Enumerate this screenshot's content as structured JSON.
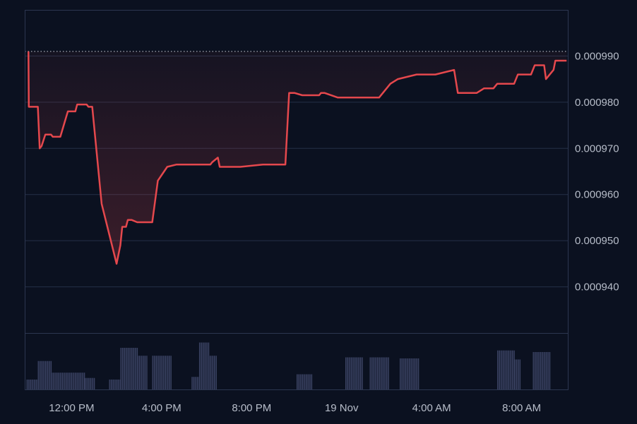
{
  "chart_data": {
    "type": "line",
    "title": "",
    "xlabel": "",
    "ylabel": "",
    "grid": true,
    "ylim": [
      0.00093,
      0.001
    ],
    "reference_line": 0.000991,
    "y_ticks": [
      "0.000940",
      "0.000950",
      "0.000960",
      "0.000970",
      "0.000980",
      "0.000990"
    ],
    "x_ticks": [
      "12:00 PM",
      "4:00 PM",
      "8:00 PM",
      "19 Nov",
      "4:00 AM",
      "8:00 AM"
    ],
    "colors": {
      "line": "#e5484d",
      "volume": "#3b4363",
      "grid": "#253047",
      "background": "#0b1120"
    },
    "series": [
      {
        "x": [
          "2024-11-18 10:05",
          "2024-11-18 10:06",
          "2024-11-18 10:30",
          "2024-11-18 10:35",
          "2024-11-18 10:40",
          "2024-11-18 10:50",
          "2024-11-18 11:05",
          "2024-11-18 11:10",
          "2024-11-18 11:30",
          "2024-11-18 11:50",
          "2024-11-18 12:10",
          "2024-11-18 12:15",
          "2024-11-18 12:40",
          "2024-11-18 12:45",
          "2024-11-18 12:55",
          "2024-11-18 13:20",
          "2024-11-18 14:00",
          "2024-11-18 14:10",
          "2024-11-18 14:15",
          "2024-11-18 14:25",
          "2024-11-18 14:30",
          "2024-11-18 14:35",
          "2024-11-18 14:40",
          "2024-11-18 14:55",
          "2024-11-18 15:20",
          "2024-11-18 15:35",
          "2024-11-18 15:50",
          "2024-11-18 16:15",
          "2024-11-18 16:40",
          "2024-11-18 17:25",
          "2024-11-18 18:10",
          "2024-11-18 18:15",
          "2024-11-18 18:30",
          "2024-11-18 18:35",
          "2024-11-18 19:30",
          "2024-11-18 20:30",
          "2024-11-18 21:30",
          "2024-11-18 21:40",
          "2024-11-18 21:45",
          "2024-11-18 21:55",
          "2024-11-18 22:15",
          "2024-11-18 23:00",
          "2024-11-18 23:05",
          "2024-11-18 23:15",
          "2024-11-18 23:50",
          "2024-11-19 00:10",
          "2024-11-19 00:20",
          "2024-11-19 00:45",
          "2024-11-19 01:10",
          "2024-11-19 01:40",
          "2024-11-19 02:10",
          "2024-11-19 02:30",
          "2024-11-19 03:20",
          "2024-11-19 04:10",
          "2024-11-19 05:00",
          "2024-11-19 05:10",
          "2024-11-19 06:00",
          "2024-11-19 06:20",
          "2024-11-19 06:30",
          "2024-11-19 06:45",
          "2024-11-19 06:55",
          "2024-11-19 07:15",
          "2024-11-19 07:40",
          "2024-11-19 07:50",
          "2024-11-19 08:25",
          "2024-11-19 08:35",
          "2024-11-19 09:00",
          "2024-11-19 09:05",
          "2024-11-19 09:25",
          "2024-11-19 09:30",
          "2024-11-19 09:35",
          "2024-11-19 09:45",
          "2024-11-19 10:00"
        ],
        "y": [
          0.000991,
          0.000979,
          0.000979,
          0.00097,
          0.0009705,
          0.000973,
          0.000973,
          0.0009725,
          0.0009725,
          0.000978,
          0.000978,
          0.0009795,
          0.0009795,
          0.000979,
          0.000979,
          0.000958,
          0.000945,
          0.000949,
          0.000953,
          0.000953,
          0.0009545,
          0.0009545,
          0.0009545,
          0.000954,
          0.000954,
          0.000954,
          0.000963,
          0.000966,
          0.0009665,
          0.0009665,
          0.0009665,
          0.000967,
          0.000968,
          0.000966,
          0.000966,
          0.0009665,
          0.0009665,
          0.000982,
          0.000982,
          0.000982,
          0.0009815,
          0.0009815,
          0.000982,
          0.000982,
          0.000981,
          0.000981,
          0.000981,
          0.000981,
          0.000981,
          0.000981,
          0.000984,
          0.000985,
          0.000986,
          0.000986,
          0.000987,
          0.000982,
          0.000982,
          0.000983,
          0.000983,
          0.000983,
          0.000984,
          0.000984,
          0.000984,
          0.000986,
          0.000986,
          0.000988,
          0.000988,
          0.000985,
          0.000987,
          0.000989,
          0.000989,
          0.000989,
          0.000989
        ]
      }
    ],
    "volume": [
      {
        "from": "2024-11-18 10:00",
        "to": "2024-11-18 10:30",
        "v": 0.2
      },
      {
        "from": "2024-11-18 10:30",
        "to": "2024-11-18 11:05",
        "v": 0.55
      },
      {
        "from": "2024-11-18 11:05",
        "to": "2024-11-18 12:35",
        "v": 0.33
      },
      {
        "from": "2024-11-18 12:35",
        "to": "2024-11-18 13:00",
        "v": 0.23
      },
      {
        "from": "2024-11-18 13:40",
        "to": "2024-11-18 14:10",
        "v": 0.2
      },
      {
        "from": "2024-11-18 14:10",
        "to": "2024-11-18 14:55",
        "v": 0.8
      },
      {
        "from": "2024-11-18 14:55",
        "to": "2024-11-18 15:20",
        "v": 0.65
      },
      {
        "from": "2024-11-18 15:35",
        "to": "2024-11-18 16:25",
        "v": 0.65
      },
      {
        "from": "2024-11-18 17:20",
        "to": "2024-11-18 17:40",
        "v": 0.25
      },
      {
        "from": "2024-11-18 17:40",
        "to": "2024-11-18 18:05",
        "v": 0.9
      },
      {
        "from": "2024-11-18 18:05",
        "to": "2024-11-18 18:25",
        "v": 0.65
      },
      {
        "from": "2024-11-18 22:00",
        "to": "2024-11-18 22:40",
        "v": 0.3
      },
      {
        "from": "2024-11-19 00:10",
        "to": "2024-11-19 00:55",
        "v": 0.62
      },
      {
        "from": "2024-11-19 01:15",
        "to": "2024-11-19 02:05",
        "v": 0.62
      },
      {
        "from": "2024-11-19 02:35",
        "to": "2024-11-19 03:25",
        "v": 0.6
      },
      {
        "from": "2024-11-19 06:55",
        "to": "2024-11-19 07:40",
        "v": 0.75
      },
      {
        "from": "2024-11-19 07:40",
        "to": "2024-11-19 07:55",
        "v": 0.58
      },
      {
        "from": "2024-11-19 08:30",
        "to": "2024-11-19 09:15",
        "v": 0.72
      }
    ]
  }
}
